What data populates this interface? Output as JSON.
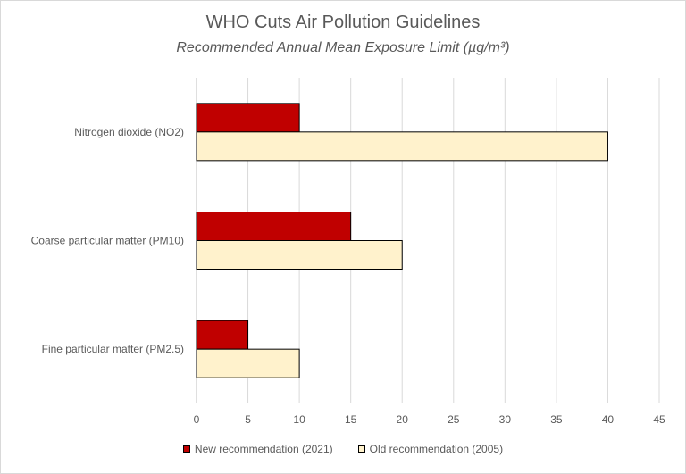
{
  "chart_data": {
    "type": "bar",
    "orientation": "horizontal",
    "title": "WHO Cuts Air Pollution Guidelines",
    "subtitle": "Recommended Annual Mean Exposure Limit (µg/m³)",
    "categories": [
      "Nitrogen dioxide (NO2)",
      "Coarse particular matter (PM10)",
      "Fine particular matter (PM2.5)"
    ],
    "series": [
      {
        "name": "New recommendation (2021)",
        "values": [
          10,
          15,
          5
        ],
        "color": "#c00000"
      },
      {
        "name": "Old recommendation (2005)",
        "values": [
          40,
          20,
          10
        ],
        "color": "#fff2cc"
      }
    ],
    "xlim": [
      0,
      45
    ],
    "xticks": [
      "0",
      "5",
      "10",
      "15",
      "20",
      "25",
      "30",
      "35",
      "40",
      "45"
    ],
    "grid": true,
    "legend_position": "bottom"
  }
}
